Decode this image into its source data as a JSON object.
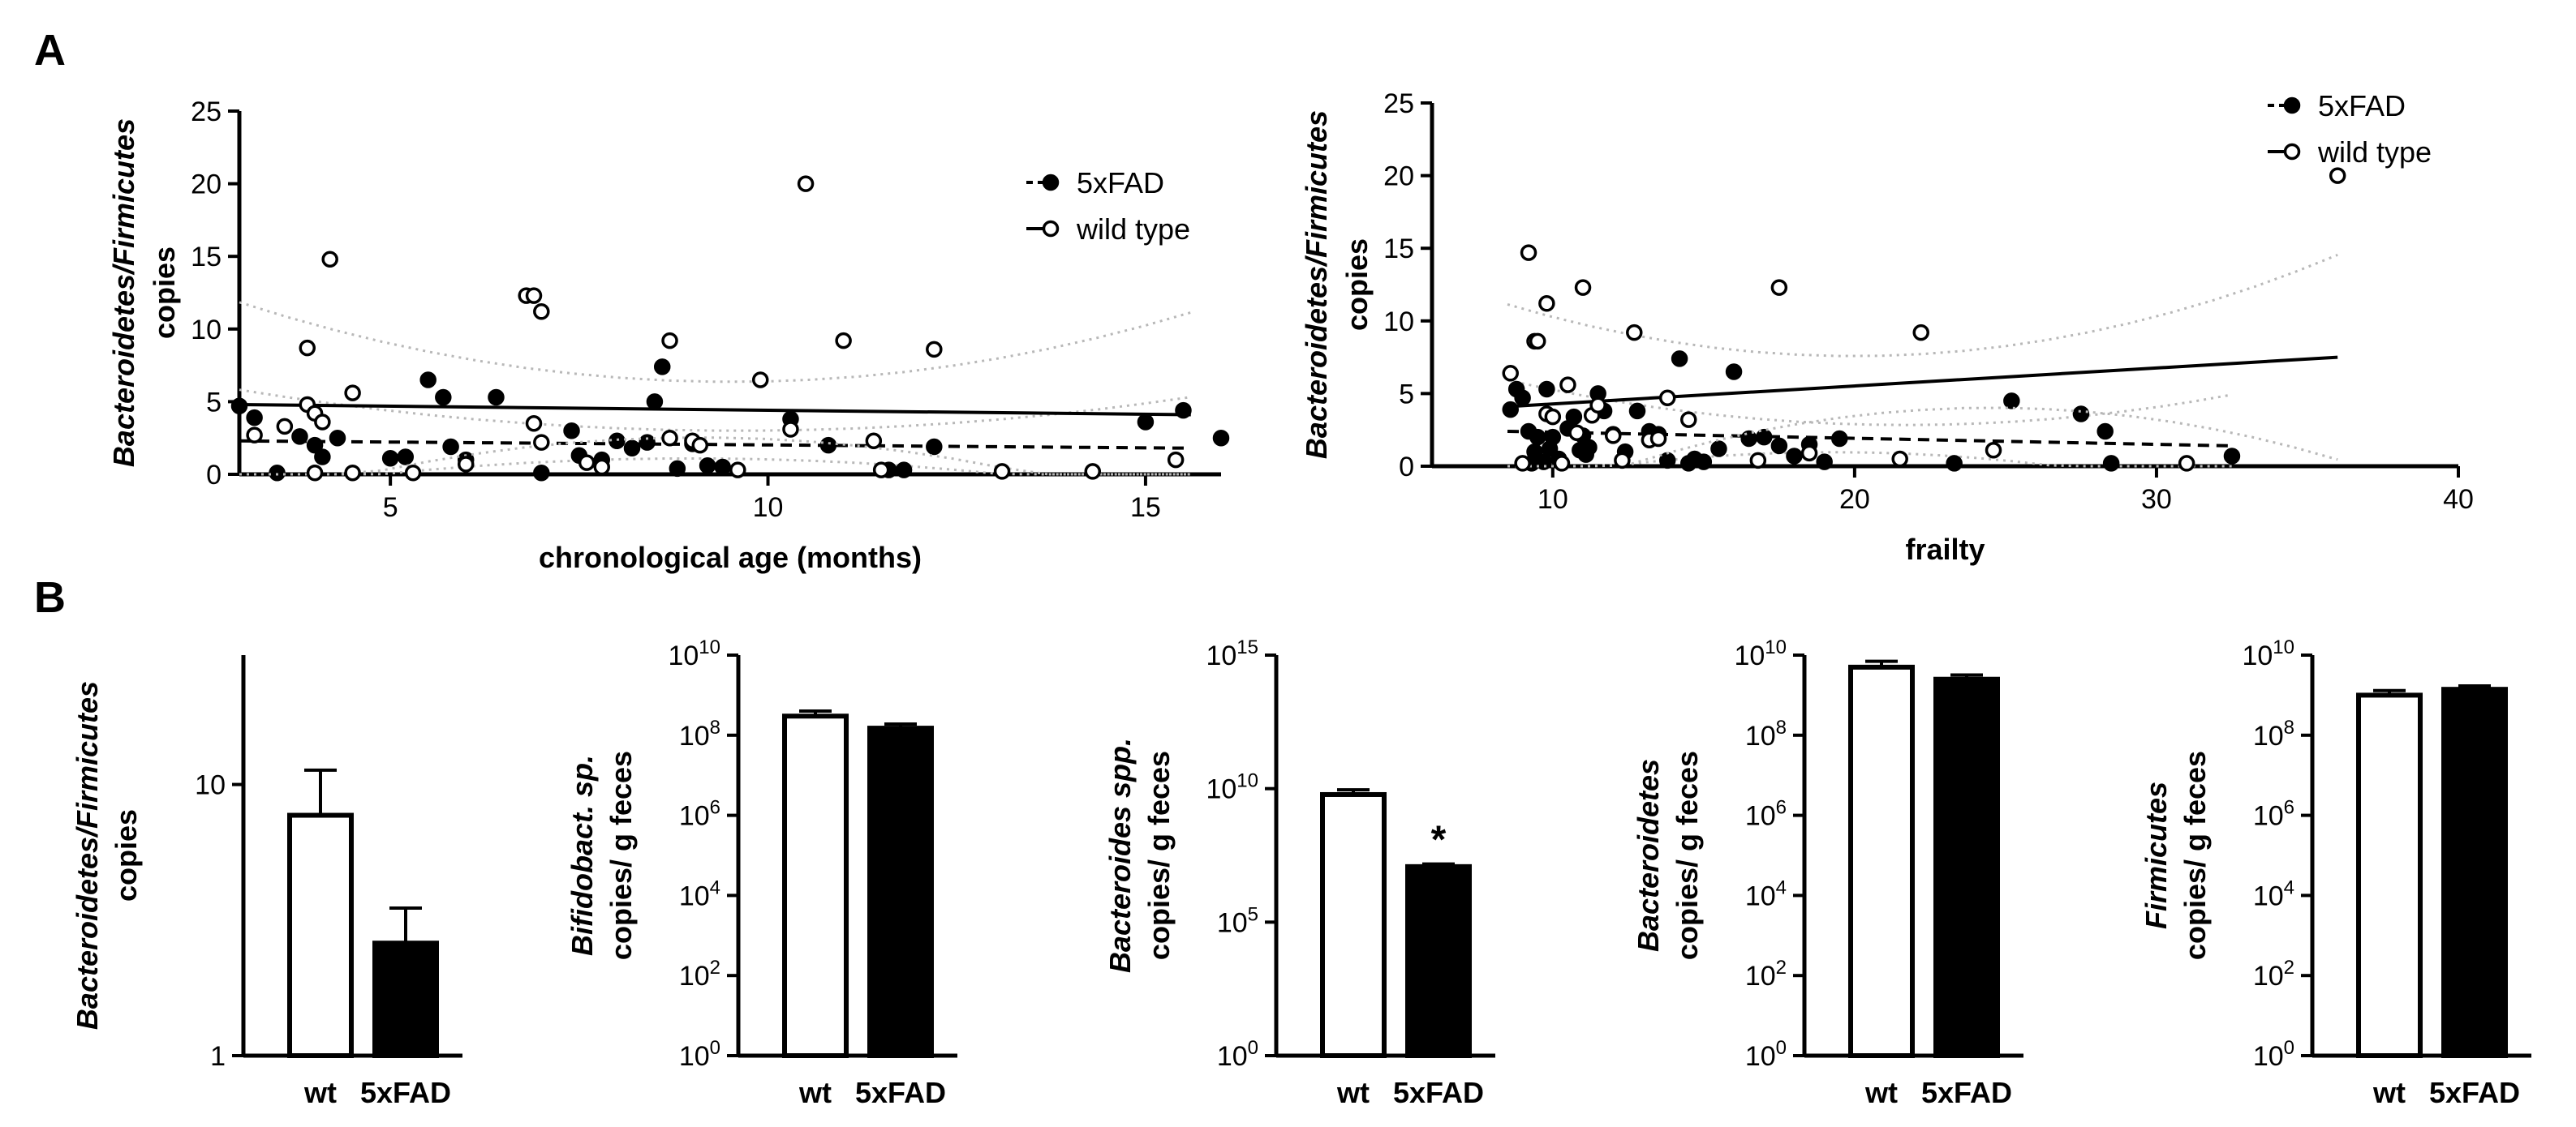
{
  "panels": {
    "a": "A",
    "b": "B"
  },
  "legend": {
    "tg": "5xFAD",
    "wt": "wild type"
  },
  "chart_data": [
    {
      "id": "A1",
      "type": "scatter",
      "title": "",
      "xlabel": "chronological age (months)",
      "ylabel_italic": "Bacteroidetes/Firmicutes",
      "ylabel": "copies",
      "xlim": [
        3,
        16
      ],
      "ylim": [
        0,
        25
      ],
      "xticks": [
        5,
        10,
        15
      ],
      "yticks": [
        0,
        5,
        10,
        15,
        20,
        25
      ],
      "legend_position": "top-right",
      "series": [
        {
          "name": "5xFAD",
          "marker": "filled",
          "line": "dashed",
          "fit": [
            [
              3,
              2.3
            ],
            [
              15.6,
              1.8
            ]
          ],
          "points": [
            [
              3.0,
              4.7
            ],
            [
              3.2,
              3.9
            ],
            [
              3.5,
              0.1
            ],
            [
              3.8,
              2.6
            ],
            [
              4.0,
              2.0
            ],
            [
              4.1,
              1.2
            ],
            [
              4.3,
              2.5
            ],
            [
              5.0,
              1.1
            ],
            [
              5.2,
              1.2
            ],
            [
              5.5,
              6.5
            ],
            [
              5.7,
              5.3
            ],
            [
              5.8,
              1.9
            ],
            [
              6.0,
              1.0
            ],
            [
              6.4,
              5.3
            ],
            [
              7.0,
              0.1
            ],
            [
              7.4,
              3.0
            ],
            [
              7.5,
              1.3
            ],
            [
              7.8,
              1.0
            ],
            [
              8.0,
              2.3
            ],
            [
              8.2,
              1.8
            ],
            [
              8.4,
              2.2
            ],
            [
              8.5,
              5.0
            ],
            [
              8.6,
              7.4
            ],
            [
              8.8,
              0.4
            ],
            [
              9.0,
              2.1
            ],
            [
              9.2,
              0.6
            ],
            [
              9.4,
              0.5
            ],
            [
              10.3,
              3.8
            ],
            [
              10.8,
              2.0
            ],
            [
              11.6,
              0.3
            ],
            [
              11.8,
              0.3
            ],
            [
              12.2,
              1.9
            ],
            [
              15.0,
              3.6
            ],
            [
              15.5,
              4.4
            ],
            [
              16.0,
              2.5
            ]
          ]
        },
        {
          "name": "wild type",
          "marker": "open",
          "line": "solid",
          "fit": [
            [
              3,
              4.8
            ],
            [
              15.6,
              4.1
            ]
          ],
          "points": [
            [
              3.2,
              2.7
            ],
            [
              3.6,
              3.3
            ],
            [
              3.9,
              8.7
            ],
            [
              3.9,
              4.8
            ],
            [
              4.0,
              4.2
            ],
            [
              4.1,
              3.6
            ],
            [
              4.0,
              0.1
            ],
            [
              4.2,
              14.8
            ],
            [
              4.5,
              5.6
            ],
            [
              4.5,
              0.1
            ],
            [
              5.3,
              0.1
            ],
            [
              6.0,
              0.7
            ],
            [
              6.8,
              12.3
            ],
            [
              6.9,
              12.3
            ],
            [
              7.0,
              11.2
            ],
            [
              6.9,
              3.5
            ],
            [
              7.0,
              2.2
            ],
            [
              7.6,
              0.8
            ],
            [
              7.8,
              0.5
            ],
            [
              8.7,
              9.2
            ],
            [
              8.7,
              2.5
            ],
            [
              9.0,
              2.3
            ],
            [
              9.1,
              2.0
            ],
            [
              9.6,
              0.3
            ],
            [
              9.9,
              6.5
            ],
            [
              10.3,
              3.1
            ],
            [
              10.5,
              20.0
            ],
            [
              11.0,
              9.2
            ],
            [
              11.4,
              2.3
            ],
            [
              11.5,
              0.3
            ],
            [
              12.2,
              8.6
            ],
            [
              13.1,
              0.2
            ],
            [
              14.3,
              0.2
            ],
            [
              15.4,
              1.0
            ]
          ]
        }
      ]
    },
    {
      "id": "A2",
      "type": "scatter",
      "title": "",
      "xlabel": "frailty",
      "ylabel_italic": "Bacteroidetes/Firmicutes",
      "ylabel": "copies",
      "xlim": [
        6,
        40
      ],
      "ylim": [
        0,
        25
      ],
      "xticks": [
        10,
        20,
        30,
        40
      ],
      "yticks": [
        0,
        5,
        10,
        15,
        20,
        25
      ],
      "legend_position": "top-right",
      "series": [
        {
          "name": "5xFAD",
          "marker": "filled",
          "line": "dashed",
          "fit": [
            [
              8.5,
              2.4
            ],
            [
              32.5,
              1.4
            ]
          ],
          "points": [
            [
              8.6,
              3.9
            ],
            [
              8.8,
              5.3
            ],
            [
              9.0,
              4.7
            ],
            [
              9.2,
              2.4
            ],
            [
              9.3,
              0.2
            ],
            [
              9.4,
              1.0
            ],
            [
              9.5,
              2.0
            ],
            [
              9.7,
              0.3
            ],
            [
              9.8,
              5.3
            ],
            [
              9.9,
              1.2
            ],
            [
              10.0,
              2.0
            ],
            [
              10.2,
              0.5
            ],
            [
              10.5,
              2.6
            ],
            [
              10.7,
              3.4
            ],
            [
              10.9,
              1.1
            ],
            [
              11.0,
              2.1
            ],
            [
              11.1,
              0.8
            ],
            [
              11.2,
              1.3
            ],
            [
              11.5,
              5.0
            ],
            [
              11.7,
              3.8
            ],
            [
              12.0,
              2.2
            ],
            [
              12.4,
              1.0
            ],
            [
              12.8,
              3.8
            ],
            [
              13.2,
              2.4
            ],
            [
              13.5,
              2.2
            ],
            [
              13.8,
              0.4
            ],
            [
              14.2,
              7.4
            ],
            [
              14.5,
              0.2
            ],
            [
              14.7,
              0.5
            ],
            [
              15.0,
              0.3
            ],
            [
              15.5,
              1.2
            ],
            [
              16.0,
              6.5
            ],
            [
              16.5,
              1.9
            ],
            [
              17.0,
              2.0
            ],
            [
              17.5,
              1.4
            ],
            [
              18.0,
              0.7
            ],
            [
              18.5,
              1.5
            ],
            [
              19.0,
              0.3
            ],
            [
              19.5,
              1.9
            ],
            [
              23.3,
              0.2
            ],
            [
              25.2,
              4.5
            ],
            [
              27.5,
              3.6
            ],
            [
              28.3,
              2.4
            ],
            [
              28.5,
              0.2
            ],
            [
              32.5,
              0.7
            ]
          ]
        },
        {
          "name": "wild type",
          "marker": "open",
          "line": "solid",
          "fit": [
            [
              8.5,
              4.1
            ],
            [
              36,
              7.5
            ]
          ],
          "points": [
            [
              8.6,
              6.4
            ],
            [
              9.0,
              0.2
            ],
            [
              9.2,
              14.7
            ],
            [
              9.4,
              8.6
            ],
            [
              9.5,
              8.6
            ],
            [
              9.8,
              11.2
            ],
            [
              9.8,
              3.6
            ],
            [
              10.0,
              3.4
            ],
            [
              10.3,
              0.2
            ],
            [
              10.5,
              5.6
            ],
            [
              10.8,
              2.3
            ],
            [
              11.0,
              12.3
            ],
            [
              11.3,
              3.5
            ],
            [
              11.5,
              4.2
            ],
            [
              12.0,
              2.1
            ],
            [
              12.3,
              0.4
            ],
            [
              12.7,
              9.2
            ],
            [
              13.2,
              1.8
            ],
            [
              13.5,
              1.9
            ],
            [
              13.8,
              4.7
            ],
            [
              14.5,
              3.2
            ],
            [
              16.8,
              0.4
            ],
            [
              17.5,
              12.3
            ],
            [
              18.5,
              0.9
            ],
            [
              21.5,
              0.5
            ],
            [
              22.2,
              9.2
            ],
            [
              24.6,
              1.1
            ],
            [
              31.0,
              0.2
            ],
            [
              36.0,
              20.0
            ]
          ]
        }
      ]
    },
    {
      "id": "B1",
      "type": "bar",
      "scale": "log",
      "ylabel_italic": "Bacteroidetes/Firmicutes",
      "ylabel": "copies",
      "categories": [
        "wt",
        "5xFAD"
      ],
      "values": [
        7.7,
        2.6
      ],
      "errors": [
        11.3,
        3.5
      ],
      "ylim": [
        1,
        30
      ],
      "yticks": [
        1,
        10
      ],
      "ytick_labels": [
        "1",
        "10"
      ],
      "annotations": [
        "",
        ""
      ]
    },
    {
      "id": "B2",
      "type": "bar",
      "scale": "log",
      "ylabel_italic": "Bifidobact. sp.",
      "ylabel": "copies/ g feces",
      "categories": [
        "wt",
        "5xFAD"
      ],
      "values": [
        300000000.0,
        150000000.0
      ],
      "errors": [
        400000000.0,
        190000000.0
      ],
      "ylim": [
        1,
        10000000000.0
      ],
      "yticks": [
        1,
        100.0,
        10000.0,
        1000000.0,
        100000000.0,
        10000000000.0
      ],
      "ytick_bases": [
        "10",
        "10",
        "10",
        "10",
        "10",
        "10"
      ],
      "ytick_exps": [
        "0",
        "2",
        "4",
        "6",
        "8",
        "10"
      ],
      "annotations": [
        "",
        ""
      ]
    },
    {
      "id": "B3",
      "type": "bar",
      "scale": "log",
      "ylabel_italic": "Bacteroides spp.",
      "ylabel": "copies/ g feces",
      "categories": [
        "wt",
        "5xFAD"
      ],
      "values": [
        6000000000.0,
        12000000.0
      ],
      "errors": [
        9000000000.0,
        15000000.0
      ],
      "ylim": [
        1,
        1000000000000000.0
      ],
      "yticks": [
        1,
        100000.0,
        10000000000.0,
        1000000000000000.0
      ],
      "ytick_bases": [
        "10",
        "10",
        "10",
        "10"
      ],
      "ytick_exps": [
        "0",
        "5",
        "10",
        "15"
      ],
      "annotations": [
        "",
        "*"
      ]
    },
    {
      "id": "B4",
      "type": "bar",
      "scale": "log",
      "ylabel_italic": "Bacteroidetes",
      "ylabel": "copies/ g feces",
      "categories": [
        "wt",
        "5xFAD"
      ],
      "values": [
        5000000000.0,
        2500000000.0
      ],
      "errors": [
        7000000000.0,
        3200000000.0
      ],
      "ylim": [
        1,
        10000000000.0
      ],
      "yticks": [
        1,
        100.0,
        10000.0,
        1000000.0,
        100000000.0,
        10000000000.0
      ],
      "ytick_bases": [
        "10",
        "10",
        "10",
        "10",
        "10",
        "10"
      ],
      "ytick_exps": [
        "0",
        "2",
        "4",
        "6",
        "8",
        "10"
      ],
      "annotations": [
        "",
        ""
      ]
    },
    {
      "id": "B5",
      "type": "bar",
      "scale": "log",
      "ylabel_italic": "Firmicutes",
      "ylabel": "copies/ g feces",
      "categories": [
        "wt",
        "5xFAD"
      ],
      "values": [
        1000000000.0,
        1400000000.0
      ],
      "errors": [
        1300000000.0,
        1700000000.0
      ],
      "ylim": [
        1,
        10000000000.0
      ],
      "yticks": [
        1,
        100.0,
        10000.0,
        1000000.0,
        100000000.0,
        10000000000.0
      ],
      "ytick_bases": [
        "10",
        "10",
        "10",
        "10",
        "10",
        "10"
      ],
      "ytick_exps": [
        "0",
        "2",
        "4",
        "6",
        "8",
        "10"
      ],
      "annotations": [
        "",
        ""
      ]
    }
  ]
}
